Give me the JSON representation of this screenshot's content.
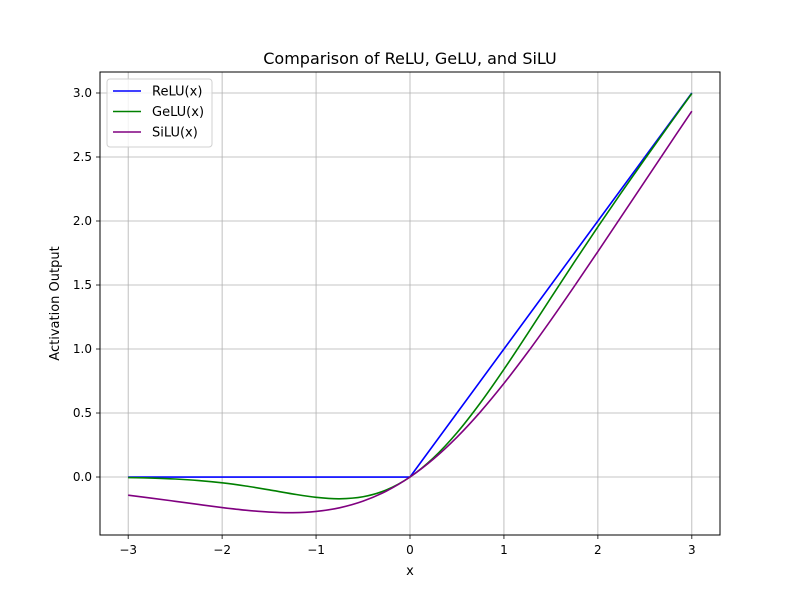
{
  "chart_data": {
    "type": "line",
    "title": "Comparison of ReLU, GeLU, and SiLU",
    "xlabel": "x",
    "ylabel": "Activation Output",
    "xlim": [
      -3.3,
      3.3
    ],
    "ylim": [
      -0.453,
      3.164
    ],
    "xticks": [
      -3,
      -2,
      -1,
      0,
      1,
      2,
      3
    ],
    "xtick_labels": [
      "−3",
      "−2",
      "−1",
      "0",
      "1",
      "2",
      "3"
    ],
    "yticks": [
      0,
      0.5,
      1,
      1.5,
      2,
      2.5,
      3
    ],
    "ytick_labels": [
      "0.0",
      "0.5",
      "1.0",
      "1.5",
      "2.0",
      "2.5",
      "3.0"
    ],
    "grid": true,
    "legend_placement": "top-left",
    "x": [
      -3,
      -2.75,
      -2.5,
      -2.25,
      -2,
      -1.75,
      -1.5,
      -1.25,
      -1,
      -0.75,
      -0.5,
      -0.25,
      0,
      0.25,
      0.5,
      0.75,
      1,
      1.25,
      1.5,
      1.75,
      2,
      2.25,
      2.5,
      2.75,
      3
    ],
    "series": [
      {
        "name": "ReLU(x)",
        "color": "#0000ff",
        "values": [
          0,
          0,
          0,
          0,
          0,
          0,
          0,
          0,
          0,
          0,
          0,
          0,
          0,
          0.25,
          0.5,
          0.75,
          1,
          1.25,
          1.5,
          1.75,
          2,
          2.25,
          2.5,
          2.75,
          3
        ]
      },
      {
        "name": "GeLU(x)",
        "color": "#008000",
        "values": [
          -0.004,
          -0.0082,
          -0.0155,
          -0.0275,
          -0.0455,
          -0.0701,
          -0.1002,
          -0.1321,
          -0.1587,
          -0.17,
          -0.1543,
          -0.1003,
          0,
          0.1497,
          0.3457,
          0.58,
          0.8413,
          1.1179,
          1.3998,
          1.6799,
          1.9545,
          2.2225,
          2.4845,
          2.7418,
          2.996
        ]
      },
      {
        "name": "SiLU(x)",
        "color": "#800080",
        "values": [
          -0.1423,
          -0.1652,
          -0.1896,
          -0.2145,
          -0.2384,
          -0.2591,
          -0.2736,
          -0.2784,
          -0.2689,
          -0.2406,
          -0.1888,
          -0.1095,
          0,
          0.1405,
          0.3112,
          0.5094,
          0.7311,
          0.9716,
          1.2264,
          1.4909,
          1.7616,
          2.0355,
          2.3104,
          2.5848,
          2.8577
        ]
      }
    ]
  }
}
